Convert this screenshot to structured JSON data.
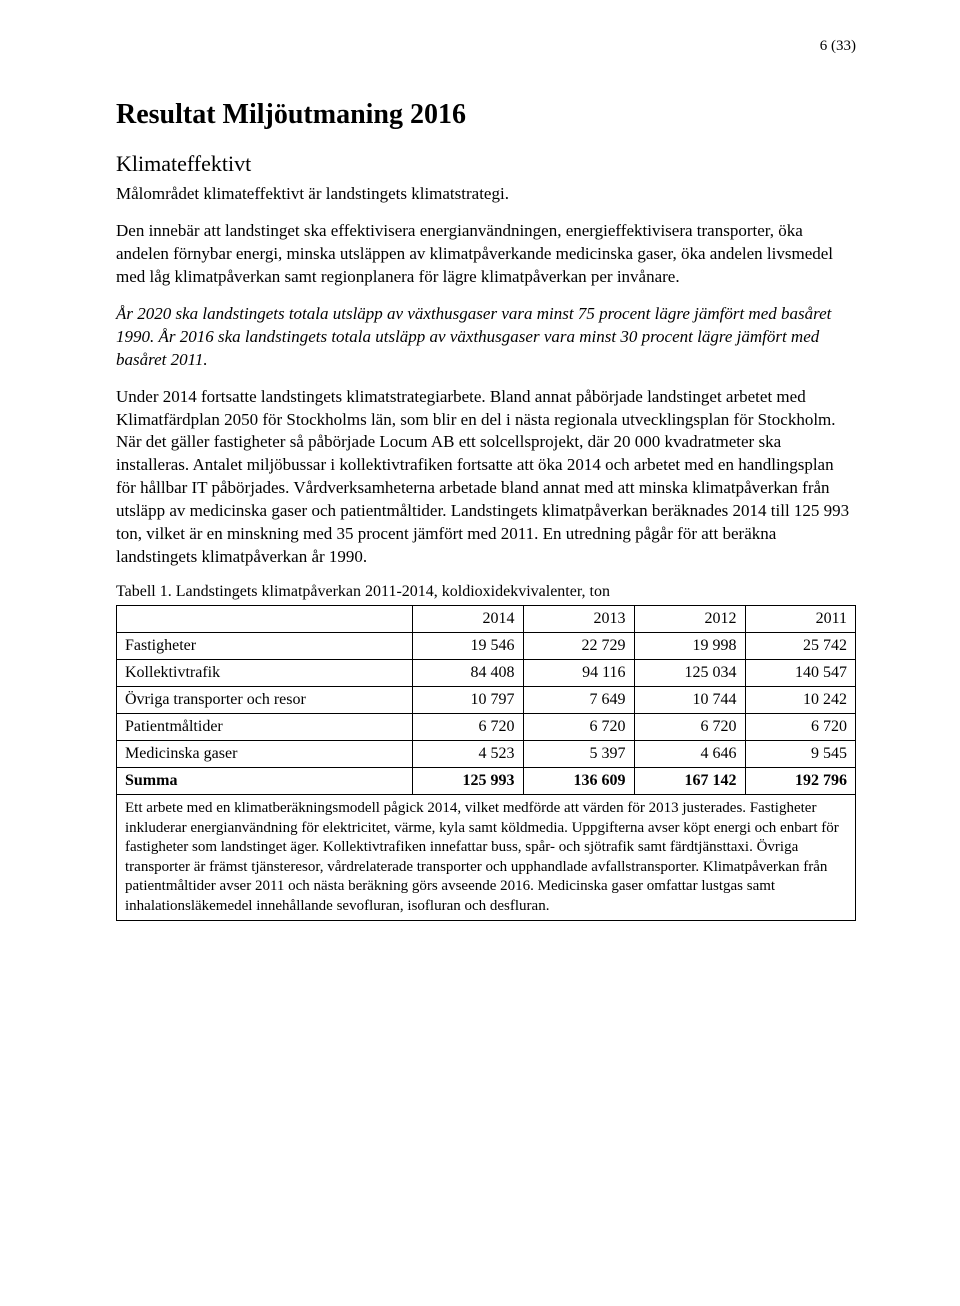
{
  "page_number": "6 (33)",
  "title": "Resultat Miljöutmaning 2016",
  "subtitle": "Klimateffektivt",
  "paragraphs": {
    "p1": "Målområdet klimateffektivt är landstingets klimatstrategi.",
    "p2": "Den innebär att landstinget ska effektivisera energianvändningen, energieffektivisera transporter, öka andelen förnybar energi, minska utsläppen av klimatpåverkande medicinska gaser, öka andelen livsmedel med låg klimatpåverkan samt regionplanera för lägre klimatpåverkan per invånare.",
    "p3": "År 2020 ska landstingets totala utsläpp av växthusgaser vara minst 75 procent lägre jämfört med basåret 1990. År 2016 ska landstingets totala utsläpp av växthusgaser vara minst 30 procent lägre jämfört med basåret 2011.",
    "p4": "Under 2014 fortsatte landstingets klimatstrategiarbete. Bland annat påbörjade landstinget arbetet med Klimatfärdplan 2050 för Stockholms län, som blir en del i nästa regionala utvecklingsplan för Stockholm. När det gäller fastigheter så påbörjade Locum AB ett solcellsprojekt, där 20 000 kvadratmeter ska installeras. Antalet miljöbussar i kollektivtrafiken fortsatte att öka 2014 och arbetet med en handlingsplan för hållbar IT påbörjades. Vårdverksamheterna arbetade bland annat med att minska klimatpåverkan från utsläpp av medicinska gaser och patientmåltider. Landstingets klimatpåverkan beräknades 2014 till 125 993 ton, vilket är en minskning med 35 procent jämfört med 2011. En utredning pågår för att beräkna landstingets klimatpåverkan år 1990."
  },
  "table": {
    "caption": "Tabell 1. Landstingets klimatpåverkan 2011-2014, koldioxidekvivalenter, ton",
    "headers": [
      "",
      "2014",
      "2013",
      "2012",
      "2011"
    ],
    "rows": [
      {
        "label": "Fastigheter",
        "c1": "19 546",
        "c2": "22 729",
        "c3": "19 998",
        "c4": "25 742"
      },
      {
        "label": "Kollektivtrafik",
        "c1": "84 408",
        "c2": "94 116",
        "c3": "125 034",
        "c4": "140 547"
      },
      {
        "label": "Övriga transporter och resor",
        "c1": "10 797",
        "c2": "7 649",
        "c3": "10 744",
        "c4": "10 242"
      },
      {
        "label": "Patientmåltider",
        "c1": "6 720",
        "c2": "6 720",
        "c3": "6 720",
        "c4": "6 720"
      },
      {
        "label": "Medicinska gaser",
        "c1": "4 523",
        "c2": "5 397",
        "c3": "4 646",
        "c4": "9 545"
      }
    ],
    "sum": {
      "label": "Summa",
      "c1": "125 993",
      "c2": "136 609",
      "c3": "167 142",
      "c4": "192 796"
    },
    "footnote": "Ett arbete med en klimatberäkningsmodell pågick 2014, vilket medförde att värden för 2013 justerades. Fastigheter inkluderar energianvändning för elektricitet, värme, kyla samt köldmedia. Uppgifterna avser köpt energi och enbart för fastigheter som landstinget äger. Kollektivtrafiken innefattar buss, spår- och sjötrafik samt färdtjänsttaxi. Övriga transporter är främst tjänsteresor, vårdrelaterade transporter och upphandlade avfallstransporter. Klimatpåverkan från patientmåltider avser 2011 och nästa beräkning görs avseende 2016. Medicinska gaser omfattar lustgas samt inhalationsläkemedel innehållande sevofluran, isofluran och desfluran."
  }
}
